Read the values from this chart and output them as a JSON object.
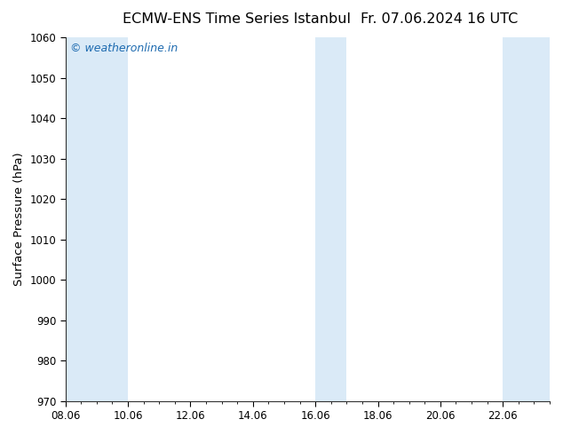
{
  "title_left": "ECMW-ENS Time Series Istanbul",
  "title_right": "Fr. 07.06.2024 16 UTC",
  "ylabel": "Surface Pressure (hPa)",
  "ylim": [
    970,
    1060
  ],
  "yticks": [
    970,
    980,
    990,
    1000,
    1010,
    1020,
    1030,
    1040,
    1050,
    1060
  ],
  "xlim": [
    0,
    15.5
  ],
  "xtick_labels": [
    "08.06",
    "10.06",
    "12.06",
    "14.06",
    "16.06",
    "18.06",
    "20.06",
    "22.06"
  ],
  "xtick_positions": [
    0,
    2,
    4,
    6,
    8,
    10,
    12,
    14
  ],
  "shaded_bands": [
    {
      "xmin": 0,
      "xmax": 1.0
    },
    {
      "xmin": 1.0,
      "xmax": 2.0
    },
    {
      "xmin": 8.0,
      "xmax": 9.0
    },
    {
      "xmin": 14.0,
      "xmax": 15.5
    }
  ],
  "band_color": "#daeaf7",
  "background_color": "#ffffff",
  "watermark_text": "© weatheronline.in",
  "watermark_color": "#1e6bb0",
  "title_fontsize": 11.5,
  "axis_fontsize": 9.5,
  "watermark_fontsize": 9,
  "tick_label_fontsize": 8.5
}
